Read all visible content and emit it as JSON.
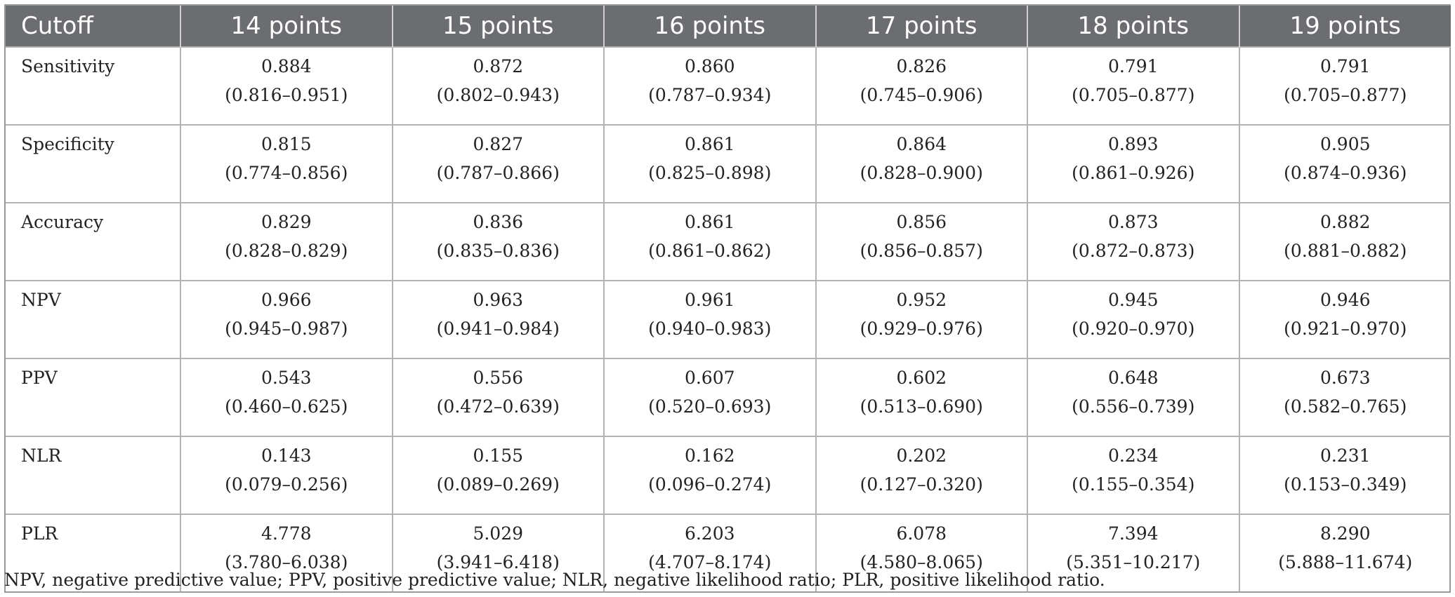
{
  "table": {
    "headers": [
      "Cutoff",
      "14 points",
      "15 points",
      "16 points",
      "17 points",
      "18 points",
      "19 points"
    ],
    "rows": [
      {
        "label": "Sensitivity",
        "cells": [
          {
            "value": "0.884",
            "ci": "(0.816–0.951)"
          },
          {
            "value": "0.872",
            "ci": "(0.802–0.943)"
          },
          {
            "value": "0.860",
            "ci": "(0.787–0.934)"
          },
          {
            "value": "0.826",
            "ci": "(0.745–0.906)"
          },
          {
            "value": "0.791",
            "ci": "(0.705–0.877)"
          },
          {
            "value": "0.791",
            "ci": "(0.705–0.877)"
          }
        ]
      },
      {
        "label": "Specificity",
        "cells": [
          {
            "value": "0.815",
            "ci": "(0.774–0.856)"
          },
          {
            "value": "0.827",
            "ci": "(0.787–0.866)"
          },
          {
            "value": "0.861",
            "ci": "(0.825–0.898)"
          },
          {
            "value": "0.864",
            "ci": "(0.828–0.900)"
          },
          {
            "value": "0.893",
            "ci": "(0.861–0.926)"
          },
          {
            "value": "0.905",
            "ci": "(0.874–0.936)"
          }
        ]
      },
      {
        "label": "Accuracy",
        "cells": [
          {
            "value": "0.829",
            "ci": "(0.828–0.829)"
          },
          {
            "value": "0.836",
            "ci": "(0.835–0.836)"
          },
          {
            "value": "0.861",
            "ci": "(0.861–0.862)"
          },
          {
            "value": "0.856",
            "ci": "(0.856–0.857)"
          },
          {
            "value": "0.873",
            "ci": "(0.872–0.873)"
          },
          {
            "value": "0.882",
            "ci": "(0.881–0.882)"
          }
        ]
      },
      {
        "label": "NPV",
        "cells": [
          {
            "value": "0.966",
            "ci": "(0.945–0.987)"
          },
          {
            "value": "0.963",
            "ci": "(0.941–0.984)"
          },
          {
            "value": "0.961",
            "ci": "(0.940–0.983)"
          },
          {
            "value": "0.952",
            "ci": "(0.929–0.976)"
          },
          {
            "value": "0.945",
            "ci": "(0.920–0.970)"
          },
          {
            "value": "0.946",
            "ci": "(0.921–0.970)"
          }
        ]
      },
      {
        "label": "PPV",
        "cells": [
          {
            "value": "0.543",
            "ci": "(0.460–0.625)"
          },
          {
            "value": "0.556",
            "ci": "(0.472–0.639)"
          },
          {
            "value": "0.607",
            "ci": "(0.520–0.693)"
          },
          {
            "value": "0.602",
            "ci": "(0.513–0.690)"
          },
          {
            "value": "0.648",
            "ci": "(0.556–0.739)"
          },
          {
            "value": "0.673",
            "ci": "(0.582–0.765)"
          }
        ]
      },
      {
        "label": "NLR",
        "cells": [
          {
            "value": "0.143",
            "ci": "(0.079–0.256)"
          },
          {
            "value": "0.155",
            "ci": "(0.089–0.269)"
          },
          {
            "value": "0.162",
            "ci": "(0.096–0.274)"
          },
          {
            "value": "0.202",
            "ci": "(0.127–0.320)"
          },
          {
            "value": "0.234",
            "ci": "(0.155–0.354)"
          },
          {
            "value": "0.231",
            "ci": "(0.153–0.349)"
          }
        ]
      },
      {
        "label": "PLR",
        "cells": [
          {
            "value": "4.778",
            "ci": "(3.780–6.038)"
          },
          {
            "value": "5.029",
            "ci": "(3.941–6.418)"
          },
          {
            "value": "6.203",
            "ci": "(4.707–8.174)"
          },
          {
            "value": "6.078",
            "ci": "(4.580–8.065)"
          },
          {
            "value": "7.394",
            "ci": "(5.351–10.217)"
          },
          {
            "value": "8.290",
            "ci": "(5.888–11.674)"
          }
        ]
      }
    ]
  },
  "footnote": "NPV, negative predictive value; PPV, positive predictive value; NLR, negative likelihood ratio; PLR, positive likelihood ratio.",
  "colors": {
    "header_bg": "#6b6d70",
    "header_text": "#ffffff",
    "grid_line": "#b3b3b3"
  }
}
